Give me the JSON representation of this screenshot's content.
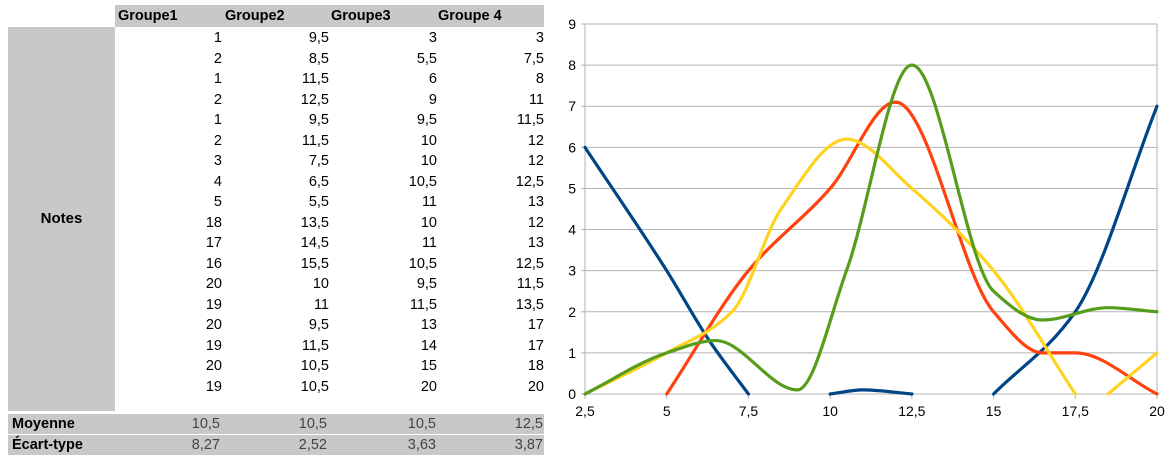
{
  "table": {
    "headers": [
      "Groupe1",
      "Groupe2",
      "Groupe3",
      "Groupe 4"
    ],
    "row_label": "Notes",
    "rows": [
      [
        "1",
        "9,5",
        "3",
        "3"
      ],
      [
        "2",
        "8,5",
        "5,5",
        "7,5"
      ],
      [
        "1",
        "11,5",
        "6",
        "8"
      ],
      [
        "2",
        "12,5",
        "9",
        "11"
      ],
      [
        "1",
        "9,5",
        "9,5",
        "11,5"
      ],
      [
        "2",
        "11,5",
        "10",
        "12"
      ],
      [
        "3",
        "7,5",
        "10",
        "12"
      ],
      [
        "4",
        "6,5",
        "10,5",
        "12,5"
      ],
      [
        "5",
        "5,5",
        "11",
        "13"
      ],
      [
        "18",
        "13,5",
        "10",
        "12"
      ],
      [
        "17",
        "14,5",
        "11",
        "13"
      ],
      [
        "16",
        "15,5",
        "10,5",
        "12,5"
      ],
      [
        "20",
        "10",
        "9,5",
        "11,5"
      ],
      [
        "19",
        "11",
        "11,5",
        "13,5"
      ],
      [
        "20",
        "9,5",
        "13",
        "17"
      ],
      [
        "19",
        "11,5",
        "14",
        "17"
      ],
      [
        "20",
        "10,5",
        "15",
        "18"
      ],
      [
        "19",
        "10,5",
        "20",
        "20"
      ]
    ],
    "footer": [
      {
        "label": "Moyenne",
        "values": [
          "10,5",
          "10,5",
          "10,5",
          "12,5"
        ]
      },
      {
        "label": "Écart-type",
        "values": [
          "8,27",
          "2,52",
          "3,63",
          "3,87"
        ]
      }
    ]
  },
  "chart_data": {
    "type": "line",
    "smooth": true,
    "x": [
      2.5,
      5,
      7.5,
      10,
      12.5,
      15,
      17.5,
      20
    ],
    "x_tick_labels": [
      "2,5",
      "5",
      "7,5",
      "10",
      "12,5",
      "15",
      "17,5",
      "20"
    ],
    "y_tick_labels": [
      "0",
      "1",
      "2",
      "3",
      "4",
      "5",
      "6",
      "7",
      "8",
      "9"
    ],
    "xlim": [
      2.5,
      20
    ],
    "ylim": [
      0,
      9
    ],
    "grid": "horizontal",
    "legend": "none",
    "series": [
      {
        "color": "#004586",
        "points": [
          [
            2.5,
            6
          ],
          [
            5,
            3
          ],
          [
            6.3,
            1.3
          ],
          [
            7.5,
            0
          ]
        ]
      },
      {
        "color": "#004586",
        "points": [
          [
            10,
            0
          ],
          [
            11,
            0.1
          ],
          [
            12.5,
            0
          ]
        ]
      },
      {
        "color": "#004586",
        "points": [
          [
            15,
            0
          ],
          [
            17.5,
            2
          ],
          [
            20,
            7
          ]
        ]
      },
      {
        "color": "#ff420e",
        "points": [
          [
            5,
            0
          ],
          [
            7.5,
            3
          ],
          [
            10,
            5
          ],
          [
            12,
            7.1
          ],
          [
            15,
            2
          ],
          [
            16.5,
            1
          ],
          [
            17.5,
            1
          ],
          [
            20,
            0
          ]
        ]
      },
      {
        "color": "#ffd320",
        "points": [
          [
            2.5,
            0
          ],
          [
            5,
            1
          ],
          [
            7,
            2
          ],
          [
            8.5,
            4.5
          ],
          [
            10.5,
            6.2
          ],
          [
            12.5,
            5
          ],
          [
            15,
            3
          ],
          [
            17.5,
            0
          ]
        ]
      },
      {
        "color": "#ffd320",
        "points": [
          [
            18.5,
            0
          ],
          [
            20,
            1
          ]
        ]
      },
      {
        "color": "#579d1c",
        "points": [
          [
            2.5,
            0
          ],
          [
            5,
            1
          ],
          [
            6.5,
            1.3
          ],
          [
            9,
            0.1
          ],
          [
            10.5,
            3
          ],
          [
            12.5,
            8
          ],
          [
            15,
            2.5
          ],
          [
            16.5,
            1.8
          ],
          [
            18.5,
            2.1
          ],
          [
            20,
            2
          ]
        ]
      }
    ]
  }
}
